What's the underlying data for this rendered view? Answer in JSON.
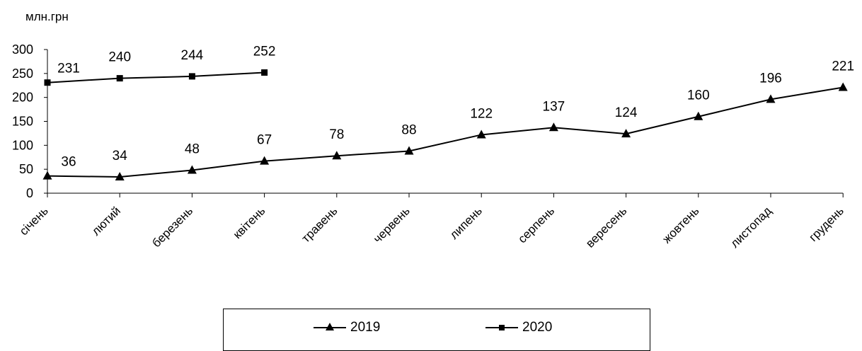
{
  "chart_data": {
    "type": "line",
    "unit_label": "млн.грн",
    "categories": [
      "січень",
      "лютий",
      "березень",
      "квітень",
      "травень",
      "червень",
      "липень",
      "серпень",
      "вересень",
      "жовтень",
      "листопад",
      "грудень"
    ],
    "ylim": [
      0,
      300
    ],
    "yticks": [
      0,
      50,
      100,
      150,
      200,
      250,
      300
    ],
    "grid": false,
    "legend_position": "bottom",
    "series": [
      {
        "name": "2019",
        "marker": "triangle",
        "color": "#000000",
        "values": [
          36,
          34,
          48,
          67,
          78,
          88,
          122,
          137,
          124,
          160,
          196,
          221
        ]
      },
      {
        "name": "2020",
        "marker": "square",
        "color": "#000000",
        "values": [
          231,
          240,
          244,
          252,
          null,
          null,
          null,
          null,
          null,
          null,
          null,
          null
        ]
      }
    ]
  }
}
